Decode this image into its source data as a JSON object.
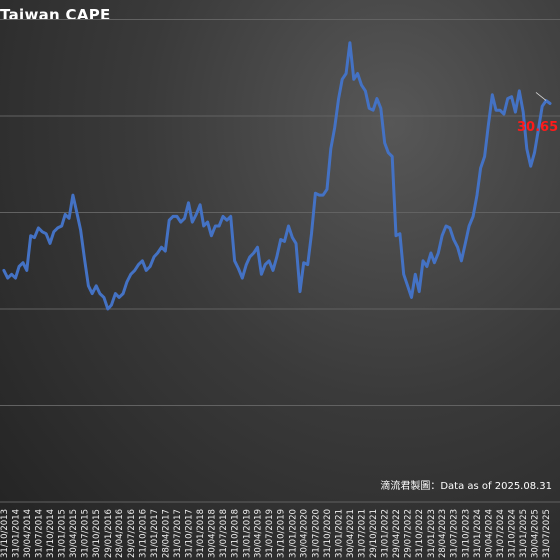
{
  "chart_data": {
    "type": "line",
    "title": "Taiwan CAPE",
    "series": [
      {
        "color": "#4472c4",
        "values": [
          {
            "x": "2013-10-31",
            "y": 22.0
          },
          {
            "x": "2013-11-30",
            "y": 21.6
          },
          {
            "x": "2013-12-31",
            "y": 21.8
          },
          {
            "x": "2014-01-31",
            "y": 21.6
          },
          {
            "x": "2014-02-28",
            "y": 22.2
          },
          {
            "x": "2014-03-31",
            "y": 22.4
          },
          {
            "x": "2014-04-30",
            "y": 22.0
          },
          {
            "x": "2014-05-31",
            "y": 23.8
          },
          {
            "x": "2014-06-30",
            "y": 23.7
          },
          {
            "x": "2014-07-31",
            "y": 24.2
          },
          {
            "x": "2014-08-31",
            "y": 24.0
          },
          {
            "x": "2014-09-30",
            "y": 23.9
          },
          {
            "x": "2014-10-31",
            "y": 23.4
          },
          {
            "x": "2014-11-30",
            "y": 24.0
          },
          {
            "x": "2014-12-31",
            "y": 24.2
          },
          {
            "x": "2015-01-31",
            "y": 24.3
          },
          {
            "x": "2015-02-28",
            "y": 24.9
          },
          {
            "x": "2015-03-31",
            "y": 24.7
          },
          {
            "x": "2015-04-30",
            "y": 25.9
          },
          {
            "x": "2015-05-31",
            "y": 25.0
          },
          {
            "x": "2015-06-30",
            "y": 24.1
          },
          {
            "x": "2015-07-31",
            "y": 22.6
          },
          {
            "x": "2015-08-31",
            "y": 21.2
          },
          {
            "x": "2015-09-30",
            "y": 20.8
          },
          {
            "x": "2015-10-31",
            "y": 21.2
          },
          {
            "x": "2015-11-30",
            "y": 20.8
          },
          {
            "x": "2015-12-31",
            "y": 20.6
          },
          {
            "x": "2016-01-31",
            "y": 20.0
          },
          {
            "x": "2016-02-29",
            "y": 20.2
          },
          {
            "x": "2016-03-31",
            "y": 20.8
          },
          {
            "x": "2016-04-30",
            "y": 20.6
          },
          {
            "x": "2016-05-31",
            "y": 20.8
          },
          {
            "x": "2016-06-30",
            "y": 21.4
          },
          {
            "x": "2016-07-31",
            "y": 21.8
          },
          {
            "x": "2016-08-31",
            "y": 22.0
          },
          {
            "x": "2016-09-30",
            "y": 22.3
          },
          {
            "x": "2016-10-31",
            "y": 22.5
          },
          {
            "x": "2016-11-30",
            "y": 22.0
          },
          {
            "x": "2016-12-31",
            "y": 22.2
          },
          {
            "x": "2017-01-31",
            "y": 22.7
          },
          {
            "x": "2017-02-28",
            "y": 22.9
          },
          {
            "x": "2017-03-31",
            "y": 23.2
          },
          {
            "x": "2017-04-30",
            "y": 23.0
          },
          {
            "x": "2017-05-31",
            "y": 24.6
          },
          {
            "x": "2017-06-30",
            "y": 24.8
          },
          {
            "x": "2017-07-31",
            "y": 24.8
          },
          {
            "x": "2017-08-31",
            "y": 24.5
          },
          {
            "x": "2017-09-30",
            "y": 24.7
          },
          {
            "x": "2017-10-31",
            "y": 25.5
          },
          {
            "x": "2017-11-30",
            "y": 24.5
          },
          {
            "x": "2017-12-31",
            "y": 24.9
          },
          {
            "x": "2018-01-31",
            "y": 25.4
          },
          {
            "x": "2018-02-28",
            "y": 24.3
          },
          {
            "x": "2018-03-31",
            "y": 24.5
          },
          {
            "x": "2018-04-30",
            "y": 23.8
          },
          {
            "x": "2018-05-31",
            "y": 24.3
          },
          {
            "x": "2018-06-30",
            "y": 24.3
          },
          {
            "x": "2018-07-31",
            "y": 24.8
          },
          {
            "x": "2018-08-31",
            "y": 24.6
          },
          {
            "x": "2018-09-30",
            "y": 24.8
          },
          {
            "x": "2018-10-31",
            "y": 22.5
          },
          {
            "x": "2018-11-30",
            "y": 22.1
          },
          {
            "x": "2018-12-31",
            "y": 21.6
          },
          {
            "x": "2019-01-31",
            "y": 22.3
          },
          {
            "x": "2019-02-28",
            "y": 22.7
          },
          {
            "x": "2019-03-31",
            "y": 22.9
          },
          {
            "x": "2019-04-30",
            "y": 23.2
          },
          {
            "x": "2019-05-31",
            "y": 21.8
          },
          {
            "x": "2019-06-30",
            "y": 22.3
          },
          {
            "x": "2019-07-31",
            "y": 22.5
          },
          {
            "x": "2019-08-31",
            "y": 22.0
          },
          {
            "x": "2019-09-30",
            "y": 22.7
          },
          {
            "x": "2019-10-31",
            "y": 23.6
          },
          {
            "x": "2019-11-30",
            "y": 23.5
          },
          {
            "x": "2019-12-31",
            "y": 24.3
          },
          {
            "x": "2020-01-31",
            "y": 23.7
          },
          {
            "x": "2020-02-29",
            "y": 23.4
          },
          {
            "x": "2020-03-31",
            "y": 20.9
          },
          {
            "x": "2020-04-30",
            "y": 22.4
          },
          {
            "x": "2020-05-31",
            "y": 22.3
          },
          {
            "x": "2020-06-30",
            "y": 23.9
          },
          {
            "x": "2020-07-31",
            "y": 26.0
          },
          {
            "x": "2020-08-31",
            "y": 25.9
          },
          {
            "x": "2020-09-30",
            "y": 25.9
          },
          {
            "x": "2020-10-31",
            "y": 26.2
          },
          {
            "x": "2020-11-30",
            "y": 28.3
          },
          {
            "x": "2020-12-31",
            "y": 29.4
          },
          {
            "x": "2021-01-31",
            "y": 30.9
          },
          {
            "x": "2021-02-28",
            "y": 31.9
          },
          {
            "x": "2021-03-31",
            "y": 32.2
          },
          {
            "x": "2021-04-30",
            "y": 33.8
          },
          {
            "x": "2021-05-31",
            "y": 31.9
          },
          {
            "x": "2021-06-30",
            "y": 32.2
          },
          {
            "x": "2021-07-31",
            "y": 31.6
          },
          {
            "x": "2021-08-31",
            "y": 31.3
          },
          {
            "x": "2021-09-30",
            "y": 30.4
          },
          {
            "x": "2021-10-31",
            "y": 30.3
          },
          {
            "x": "2021-11-30",
            "y": 30.9
          },
          {
            "x": "2021-12-31",
            "y": 30.4
          },
          {
            "x": "2022-01-31",
            "y": 28.6
          },
          {
            "x": "2022-02-28",
            "y": 28.1
          },
          {
            "x": "2022-03-31",
            "y": 27.9
          },
          {
            "x": "2022-04-30",
            "y": 23.8
          },
          {
            "x": "2022-05-31",
            "y": 23.9
          },
          {
            "x": "2022-06-30",
            "y": 21.8
          },
          {
            "x": "2022-07-31",
            "y": 21.2
          },
          {
            "x": "2022-08-31",
            "y": 20.6
          },
          {
            "x": "2022-09-30",
            "y": 21.8
          },
          {
            "x": "2022-10-31",
            "y": 20.9
          },
          {
            "x": "2022-11-30",
            "y": 22.5
          },
          {
            "x": "2022-12-31",
            "y": 22.2
          },
          {
            "x": "2023-01-31",
            "y": 22.9
          },
          {
            "x": "2023-02-28",
            "y": 22.4
          },
          {
            "x": "2023-03-31",
            "y": 22.9
          },
          {
            "x": "2023-04-30",
            "y": 23.8
          },
          {
            "x": "2023-05-31",
            "y": 24.3
          },
          {
            "x": "2023-06-30",
            "y": 24.2
          },
          {
            "x": "2023-07-31",
            "y": 23.6
          },
          {
            "x": "2023-08-31",
            "y": 23.2
          },
          {
            "x": "2023-09-30",
            "y": 22.5
          },
          {
            "x": "2023-10-31",
            "y": 23.4
          },
          {
            "x": "2023-11-30",
            "y": 24.3
          },
          {
            "x": "2023-12-31",
            "y": 24.8
          },
          {
            "x": "2024-01-31",
            "y": 25.9
          },
          {
            "x": "2024-02-29",
            "y": 27.3
          },
          {
            "x": "2024-03-31",
            "y": 27.9
          },
          {
            "x": "2024-04-30",
            "y": 29.5
          },
          {
            "x": "2024-05-31",
            "y": 31.1
          },
          {
            "x": "2024-06-30",
            "y": 30.3
          },
          {
            "x": "2024-07-31",
            "y": 30.3
          },
          {
            "x": "2024-08-31",
            "y": 30.1
          },
          {
            "x": "2024-09-30",
            "y": 30.9
          },
          {
            "x": "2024-10-31",
            "y": 31.0
          },
          {
            "x": "2024-11-30",
            "y": 30.2
          },
          {
            "x": "2024-12-31",
            "y": 31.3
          },
          {
            "x": "2025-01-31",
            "y": 30.2
          },
          {
            "x": "2025-02-28",
            "y": 28.3
          },
          {
            "x": "2025-03-31",
            "y": 27.4
          },
          {
            "x": "2025-04-30",
            "y": 28.1
          },
          {
            "x": "2025-05-31",
            "y": 29.3
          },
          {
            "x": "2025-06-30",
            "y": 30.5
          },
          {
            "x": "2025-07-31",
            "y": 30.8
          },
          {
            "x": "2025-08-31",
            "y": 30.65
          }
        ]
      }
    ],
    "xlim": [
      "2013-09-30",
      "2025-08-31"
    ],
    "ylim": [
      10,
      40
    ],
    "y_gridlines": [
      10,
      15,
      20,
      25,
      30,
      35,
      40
    ],
    "grid": "horizontal",
    "x_tick_labels": [
      {
        "x": "2013-10-31",
        "label": "31/10/2013"
      },
      {
        "x": "2014-01-31",
        "label": "31/01/2014"
      },
      {
        "x": "2014-04-30",
        "label": "30/04/2014"
      },
      {
        "x": "2014-07-31",
        "label": "31/07/2014"
      },
      {
        "x": "2014-10-31",
        "label": "31/10/2014"
      },
      {
        "x": "2015-01-31",
        "label": "31/01/2015"
      },
      {
        "x": "2015-04-30",
        "label": "30/04/2015"
      },
      {
        "x": "2015-07-31",
        "label": "31/07/2015"
      },
      {
        "x": "2015-10-31",
        "label": "30/10/2015"
      },
      {
        "x": "2016-01-31",
        "label": "29/01/2016"
      },
      {
        "x": "2016-04-30",
        "label": "28/04/2016"
      },
      {
        "x": "2016-07-31",
        "label": "29/07/2016"
      },
      {
        "x": "2016-10-31",
        "label": "31/10/2016"
      },
      {
        "x": "2017-01-31",
        "label": "31/01/2017"
      },
      {
        "x": "2017-04-30",
        "label": "28/04/2017"
      },
      {
        "x": "2017-07-31",
        "label": "31/07/2017"
      },
      {
        "x": "2017-10-31",
        "label": "31/10/2017"
      },
      {
        "x": "2018-01-31",
        "label": "31/01/2018"
      },
      {
        "x": "2018-04-30",
        "label": "30/04/2018"
      },
      {
        "x": "2018-07-31",
        "label": "31/07/2018"
      },
      {
        "x": "2018-10-31",
        "label": "31/10/2018"
      },
      {
        "x": "2019-01-31",
        "label": "31/01/2019"
      },
      {
        "x": "2019-04-30",
        "label": "30/04/2019"
      },
      {
        "x": "2019-07-31",
        "label": "31/07/2019"
      },
      {
        "x": "2019-10-31",
        "label": "31/10/2019"
      },
      {
        "x": "2020-01-31",
        "label": "31/01/2020"
      },
      {
        "x": "2020-04-30",
        "label": "30/04/2020"
      },
      {
        "x": "2020-07-31",
        "label": "31/07/2020"
      },
      {
        "x": "2020-10-31",
        "label": "31/10/2020"
      },
      {
        "x": "2021-01-31",
        "label": "31/01/2021"
      },
      {
        "x": "2021-04-30",
        "label": "30/04/2021"
      },
      {
        "x": "2021-07-31",
        "label": "31/07/2021"
      },
      {
        "x": "2021-10-31",
        "label": "29/10/2021"
      },
      {
        "x": "2022-01-31",
        "label": "31/01/2022"
      },
      {
        "x": "2022-04-30",
        "label": "29/04/2022"
      },
      {
        "x": "2022-07-31",
        "label": "29/07/2022"
      },
      {
        "x": "2022-10-31",
        "label": "31/10/2022"
      },
      {
        "x": "2023-01-31",
        "label": "31/01/2023"
      },
      {
        "x": "2023-04-30",
        "label": "28/04/2023"
      },
      {
        "x": "2023-07-31",
        "label": "31/07/2023"
      },
      {
        "x": "2023-10-31",
        "label": "31/10/2023"
      },
      {
        "x": "2024-01-31",
        "label": "31/01/2024"
      },
      {
        "x": "2024-04-30",
        "label": "30/04/2024"
      },
      {
        "x": "2024-07-31",
        "label": "31/07/2024"
      },
      {
        "x": "2024-10-31",
        "label": "31/10/2024"
      },
      {
        "x": "2025-01-31",
        "label": "31/01/2025"
      },
      {
        "x": "2025-04-30",
        "label": "30/04/2025"
      },
      {
        "x": "2025-07-31",
        "label": "31/07/2025"
      }
    ],
    "annotations": [
      {
        "text": "30.65",
        "x": "2025-08-31",
        "y": 30.65,
        "color": "#ff1a1a"
      },
      {
        "text": "滴流君製圖：Data as of 2025.08.31",
        "position": "bottom-right"
      }
    ],
    "legend": "none"
  }
}
